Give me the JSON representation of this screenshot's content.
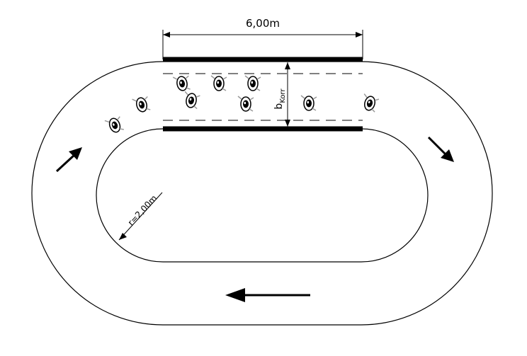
{
  "labels": {
    "length": "6,00m",
    "width_main": "b",
    "width_sub": "Korr",
    "radius": "r=2,00m"
  },
  "pedestrians": [
    {
      "id": 1
    },
    {
      "id": 2
    },
    {
      "id": 3
    },
    {
      "id": 4
    },
    {
      "id": 5
    },
    {
      "id": 6
    },
    {
      "id": 7
    },
    {
      "id": 8
    },
    {
      "id": 9
    },
    {
      "id": 10
    }
  ],
  "flow_arrows": [
    "up-right",
    "down-right",
    "left"
  ]
}
